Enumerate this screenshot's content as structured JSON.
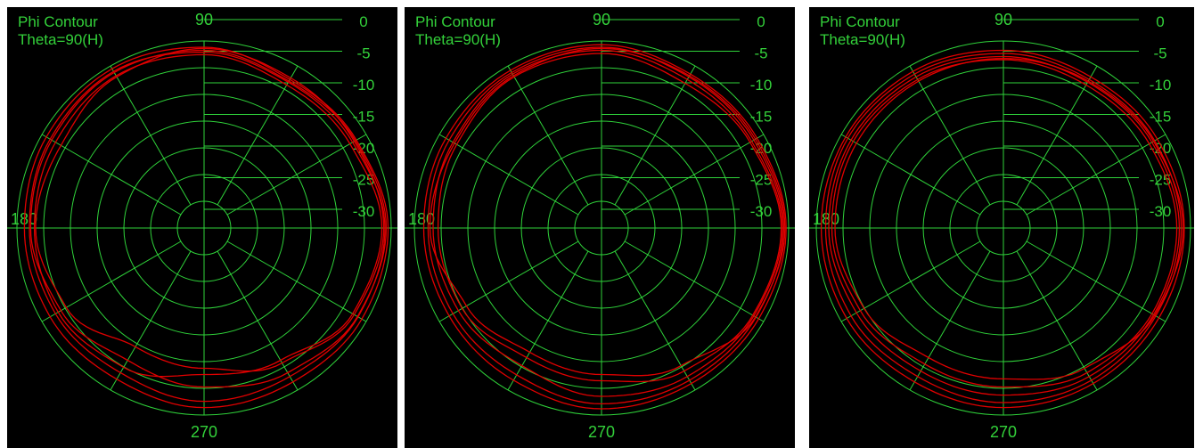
{
  "chart_data": [
    {
      "type": "polar-line",
      "title": "Phi Contour",
      "subtitle": "Theta=90(H)",
      "angle_labels": [
        "90",
        "180",
        "270"
      ],
      "radial_labels": [
        "0",
        "-5",
        "-10",
        "-15",
        "-20",
        "-25",
        "-30"
      ],
      "radial_range_db": [
        -30,
        0
      ],
      "grid": true,
      "colors": {
        "grid": "#2fd23a",
        "trace": "#e00000",
        "background": "#000000"
      },
      "traces": [
        {
          "phi": [
            0,
            30,
            60,
            90,
            120,
            150,
            180,
            210,
            240,
            270,
            300,
            330
          ],
          "gain_db": [
            -0.5,
            -1.8,
            -2.5,
            -1.0,
            -0.5,
            -0.8,
            -1.2,
            -1.5,
            -2.0,
            -1.2,
            -1.5,
            -0.8
          ]
        },
        {
          "phi": [
            0,
            30,
            60,
            90,
            120,
            150,
            180,
            210,
            240,
            270,
            300,
            330
          ],
          "gain_db": [
            -1.0,
            -2.5,
            -3.0,
            -1.8,
            -1.0,
            -1.5,
            -2.0,
            -2.5,
            -3.2,
            -2.2,
            -2.5,
            -1.5
          ]
        },
        {
          "phi": [
            0,
            30,
            60,
            90,
            120,
            150,
            180,
            210,
            240,
            270,
            300,
            330
          ],
          "gain_db": [
            -0.8,
            -2.0,
            -2.8,
            -1.5,
            -1.2,
            -1.8,
            -2.2,
            -3.5,
            -5.5,
            -4.5,
            -3.2,
            -1.6
          ]
        },
        {
          "phi": [
            0,
            30,
            60,
            90,
            120,
            150,
            180,
            210,
            240,
            270,
            300,
            330
          ],
          "gain_db": [
            -1.5,
            -3.0,
            -3.5,
            -2.2,
            -1.8,
            -2.5,
            -2.8,
            -3.0,
            -4.2,
            -6.5,
            -5.5,
            -2.5
          ]
        },
        {
          "phi": [
            0,
            30,
            60,
            90,
            120,
            150,
            180,
            210,
            240,
            270,
            300,
            330
          ],
          "gain_db": [
            -1.2,
            -2.2,
            -2.2,
            -1.2,
            -2.0,
            -3.5,
            -3.0,
            -4.5,
            -8.0,
            -7.5,
            -5.0,
            -2.2
          ]
        }
      ]
    },
    {
      "type": "polar-line",
      "title": "Phi Contour",
      "subtitle": "Theta=90(H)",
      "angle_labels": [
        "90",
        "180",
        "270"
      ],
      "radial_labels": [
        "0",
        "-5",
        "-10",
        "-15",
        "-20",
        "-25",
        "-30"
      ],
      "radial_range_db": [
        -30,
        0
      ],
      "grid": true,
      "colors": {
        "grid": "#2fd23a",
        "trace": "#e00000",
        "background": "#000000"
      },
      "traces": [
        {
          "phi": [
            0,
            30,
            60,
            90,
            120,
            150,
            180,
            210,
            240,
            270,
            300,
            330
          ],
          "gain_db": [
            -0.4,
            -1.2,
            -1.5,
            -0.6,
            -0.8,
            -1.2,
            -1.5,
            -1.8,
            -1.8,
            -1.0,
            -1.2,
            -0.9
          ]
        },
        {
          "phi": [
            0,
            30,
            60,
            90,
            120,
            150,
            180,
            210,
            240,
            270,
            300,
            330
          ],
          "gain_db": [
            -0.8,
            -1.8,
            -2.0,
            -1.0,
            -1.2,
            -1.8,
            -2.2,
            -2.5,
            -2.8,
            -1.8,
            -1.8,
            -1.4
          ]
        },
        {
          "phi": [
            0,
            30,
            60,
            90,
            120,
            150,
            180,
            210,
            240,
            270,
            300,
            330
          ],
          "gain_db": [
            -1.0,
            -2.2,
            -2.5,
            -1.5,
            -1.5,
            -2.5,
            -3.0,
            -3.5,
            -4.5,
            -3.0,
            -2.5,
            -1.8
          ]
        },
        {
          "phi": [
            0,
            30,
            60,
            90,
            120,
            150,
            180,
            210,
            240,
            270,
            300,
            330
          ],
          "gain_db": [
            -1.2,
            -2.5,
            -3.2,
            -2.0,
            -2.0,
            -3.2,
            -3.8,
            -4.2,
            -6.0,
            -5.5,
            -3.5,
            -2.0
          ]
        },
        {
          "phi": [
            0,
            30,
            60,
            90,
            120,
            150,
            180,
            210,
            240,
            270,
            300,
            330
          ],
          "gain_db": [
            -0.6,
            -1.5,
            -1.8,
            -1.2,
            -1.8,
            -2.8,
            -2.5,
            -5.0,
            -7.0,
            -6.5,
            -4.5,
            -1.5
          ]
        }
      ]
    },
    {
      "type": "polar-line",
      "title": "Phi Contour",
      "subtitle": "Theta=90(H)",
      "angle_labels": [
        "90",
        "180",
        "270"
      ],
      "radial_labels": [
        "0",
        "-5",
        "-10",
        "-15",
        "-20",
        "-25",
        "-30"
      ],
      "radial_range_db": [
        -30,
        0
      ],
      "grid": true,
      "colors": {
        "grid": "#2fd23a",
        "trace": "#e00000",
        "background": "#000000"
      },
      "traces": [
        {
          "phi": [
            0,
            30,
            60,
            90,
            120,
            150,
            180,
            210,
            240,
            270,
            300,
            330
          ],
          "gain_db": [
            -1.0,
            -1.5,
            -2.0,
            -1.5,
            -1.0,
            -0.8,
            -0.8,
            -1.0,
            -1.5,
            -1.2,
            -1.2,
            -1.2
          ]
        },
        {
          "phi": [
            0,
            30,
            60,
            90,
            120,
            150,
            180,
            210,
            240,
            270,
            300,
            330
          ],
          "gain_db": [
            -1.5,
            -2.0,
            -2.5,
            -2.0,
            -1.5,
            -1.2,
            -1.5,
            -1.8,
            -2.5,
            -2.0,
            -1.8,
            -1.8
          ]
        },
        {
          "phi": [
            0,
            30,
            60,
            90,
            120,
            150,
            180,
            210,
            240,
            270,
            300,
            330
          ],
          "gain_db": [
            -1.8,
            -2.5,
            -3.0,
            -2.5,
            -2.0,
            -1.8,
            -2.0,
            -2.8,
            -3.5,
            -3.2,
            -2.5,
            -2.2
          ]
        },
        {
          "phi": [
            0,
            30,
            60,
            90,
            120,
            150,
            180,
            210,
            240,
            270,
            300,
            330
          ],
          "gain_db": [
            -2.2,
            -3.0,
            -3.5,
            -3.0,
            -2.5,
            -2.2,
            -2.5,
            -3.5,
            -4.8,
            -4.5,
            -3.2,
            -2.5
          ]
        },
        {
          "phi": [
            0,
            30,
            60,
            90,
            120,
            150,
            180,
            210,
            240,
            270,
            300,
            330
          ],
          "gain_db": [
            -1.2,
            -2.2,
            -2.8,
            -2.8,
            -2.8,
            -2.8,
            -3.0,
            -4.2,
            -6.0,
            -5.8,
            -4.0,
            -2.0
          ]
        }
      ]
    }
  ]
}
